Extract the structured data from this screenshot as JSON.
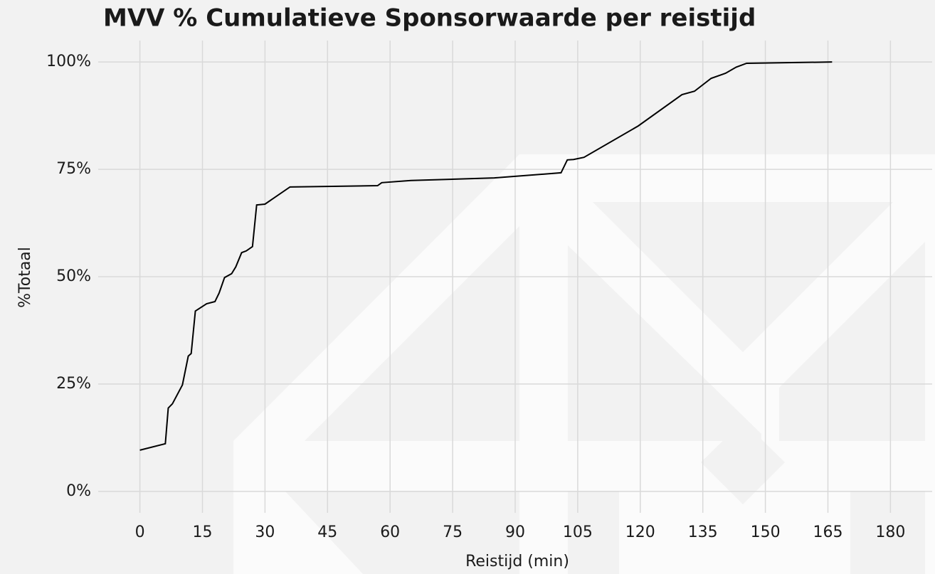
{
  "chart_data": {
    "type": "line",
    "title": "MVV % Cumulatieve Sponsorwaarde per reistijd",
    "x_label": "Reistijd (min)",
    "y_label": "%Totaal",
    "x": [
      0,
      6.1,
      6.8,
      7.8,
      10.2,
      11.6,
      12.3,
      13.3,
      16,
      18,
      19,
      20.3,
      22,
      23,
      24.4,
      25.5,
      27,
      28,
      30,
      36,
      57,
      58,
      65,
      85,
      101,
      102.5,
      104,
      106.5,
      119.5,
      130,
      133,
      137,
      140.5,
      143,
      145.5,
      166
    ],
    "series": [
      {
        "name": "%Totaal",
        "color": "#000000",
        "values": [
          9.6,
          11.1,
          19.4,
          20.4,
          24.8,
          31.5,
          32.1,
          42,
          43.7,
          44.2,
          46.2,
          49.8,
          50.7,
          52.3,
          55.6,
          56,
          57,
          66.7,
          66.9,
          70.9,
          71.2,
          71.9,
          72.4,
          73,
          74.2,
          77.2,
          77.3,
          77.8,
          85.1,
          92.4,
          93.2,
          96.2,
          97.4,
          98.8,
          99.7,
          100
        ]
      }
    ],
    "xlim": [
      -10,
      190
    ],
    "xticks": [
      0,
      15,
      30,
      45,
      60,
      75,
      90,
      105,
      120,
      135,
      150,
      165,
      180
    ],
    "ylim": [
      -5,
      105
    ],
    "yticks": [
      {
        "value": 0,
        "label": "0%"
      },
      {
        "value": 25,
        "label": "25%"
      },
      {
        "value": 50,
        "label": "50%"
      },
      {
        "value": 75,
        "label": "75%"
      },
      {
        "value": 100,
        "label": "100%"
      }
    ],
    "grid": true
  }
}
